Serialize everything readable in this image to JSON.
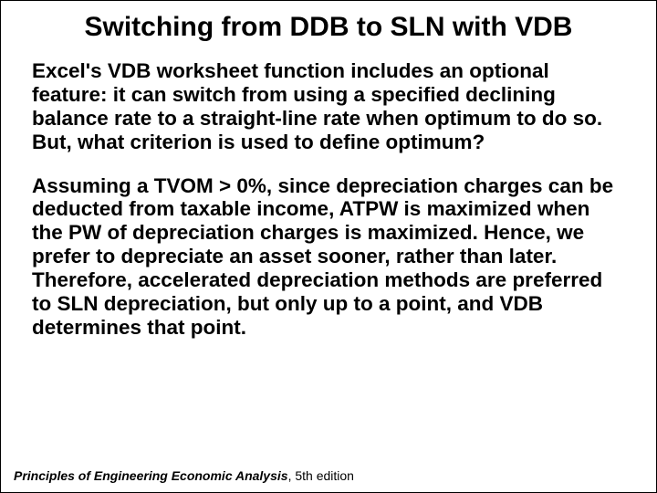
{
  "title": "Switching from DDB to SLN with VDB",
  "paragraph1": "Excel's VDB worksheet function includes an optional feature: it can switch from using a specified declining balance rate to a straight-line rate when optimum to do so. But, what criterion is used to define optimum?",
  "paragraph2": "Assuming a TVOM > 0%, since depreciation charges can be deducted from taxable income, ATPW is maximized when the PW of depreciation charges is maximized. Hence, we prefer to depreciate an asset sooner, rather than later. Therefore, accelerated depreciation methods are preferred to SLN depreciation, but only up to a point, and VDB determines that point.",
  "footer": {
    "book_title": "Principles of Engineering Economic Analysis",
    "edition": ", 5th edition"
  },
  "colors": {
    "background": "#ffffff",
    "text": "#000000"
  },
  "typography": {
    "title_fontsize": 30,
    "body_fontsize": 22.5,
    "footer_fontsize": 14,
    "font_family": "Arial",
    "body_weight": "bold",
    "title_weight": "bold"
  }
}
